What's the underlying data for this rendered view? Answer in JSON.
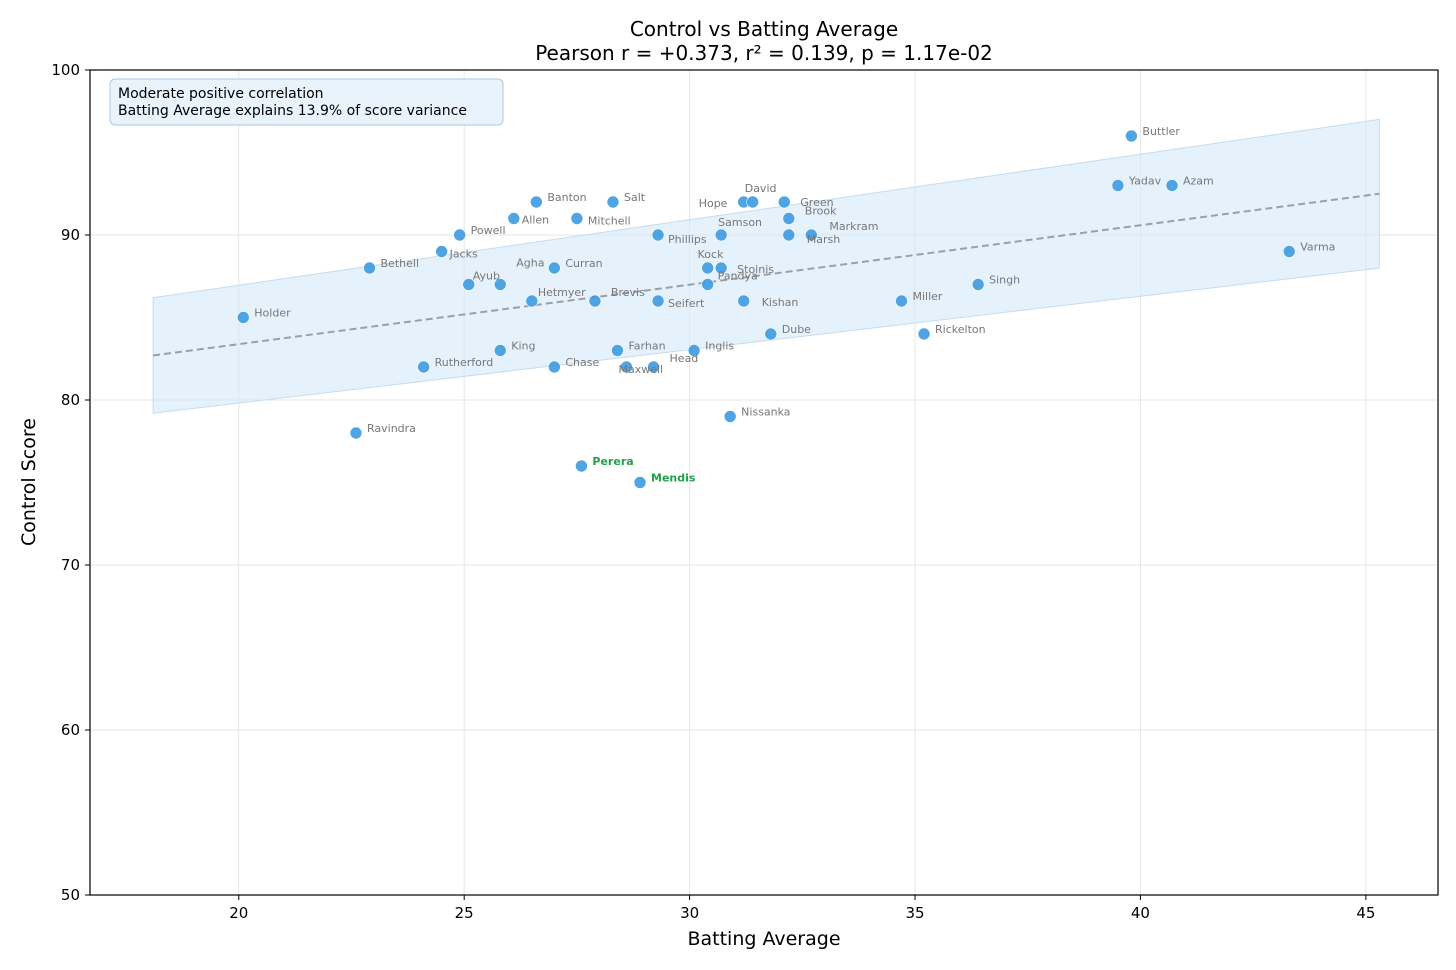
{
  "chart_data": {
    "type": "scatter",
    "title": "Control vs Batting Average",
    "subtitle": "Pearson r = +0.373,  r² = 0.139,  p = 1.17e-02",
    "xlabel": "Batting Average",
    "ylabel": "Control Score",
    "xlim": [
      16.7,
      46.6
    ],
    "ylim": [
      50,
      100
    ],
    "xticks": [
      "20",
      "25",
      "30",
      "35",
      "40",
      "45"
    ],
    "yticks": [
      "50",
      "60",
      "70",
      "80",
      "90",
      "100"
    ],
    "grid": true,
    "annotation": {
      "line1": "Moderate positive correlation",
      "line2": "Batting Average explains 13.9% of score variance"
    },
    "trend": {
      "x": [
        18.1,
        45.3
      ],
      "y": [
        82.7,
        92.5
      ],
      "style": "dashed"
    },
    "band": {
      "x": [
        18.1,
        45.3
      ],
      "upper": [
        86.2,
        97.0
      ],
      "lower": [
        79.2,
        88.0
      ]
    },
    "colors": {
      "point": "#3d9ae0",
      "highlight": "#22a04a",
      "trend": "#9aa0a6",
      "band": "#d6e9f8",
      "label": "#777777"
    },
    "points": [
      {
        "name": "Holder",
        "x": 20.1,
        "y": 85
      },
      {
        "name": "Ravindra",
        "x": 22.6,
        "y": 78
      },
      {
        "name": "Bethell",
        "x": 22.9,
        "y": 88
      },
      {
        "name": "Rutherford",
        "x": 24.1,
        "y": 82
      },
      {
        "name": "Jacks",
        "x": 24.5,
        "y": 89
      },
      {
        "name": "Powell",
        "x": 24.9,
        "y": 90
      },
      {
        "name": "Ayub",
        "x": 25.1,
        "y": 87
      },
      {
        "name": "Agha",
        "x": 25.8,
        "y": 87
      },
      {
        "name": "King",
        "x": 25.8,
        "y": 83
      },
      {
        "name": "Allen",
        "x": 26.1,
        "y": 91
      },
      {
        "name": "Hetmyer",
        "x": 26.5,
        "y": 86
      },
      {
        "name": "Banton",
        "x": 26.6,
        "y": 92
      },
      {
        "name": "Curran",
        "x": 27.0,
        "y": 88
      },
      {
        "name": "Chase",
        "x": 27.0,
        "y": 82
      },
      {
        "name": "Mitchell",
        "x": 27.5,
        "y": 91
      },
      {
        "name": "Perera",
        "x": 27.6,
        "y": 76,
        "highlight": true
      },
      {
        "name": "Brevis",
        "x": 27.9,
        "y": 86
      },
      {
        "name": "Salt",
        "x": 28.3,
        "y": 92
      },
      {
        "name": "Farhan",
        "x": 28.4,
        "y": 83
      },
      {
        "name": "Maxwell",
        "x": 28.6,
        "y": 82
      },
      {
        "name": "Mendis",
        "x": 28.9,
        "y": 75,
        "highlight": true
      },
      {
        "name": "Head",
        "x": 29.2,
        "y": 82
      },
      {
        "name": "Phillips",
        "x": 29.3,
        "y": 90
      },
      {
        "name": "Seifert",
        "x": 29.3,
        "y": 86
      },
      {
        "name": "Inglis",
        "x": 30.1,
        "y": 83
      },
      {
        "name": "Kock",
        "x": 30.4,
        "y": 88
      },
      {
        "name": "Pandya",
        "x": 30.4,
        "y": 87
      },
      {
        "name": "Samson",
        "x": 30.7,
        "y": 90
      },
      {
        "name": "Stoinis",
        "x": 30.7,
        "y": 88
      },
      {
        "name": "Nissanka",
        "x": 30.9,
        "y": 79
      },
      {
        "name": "Hope",
        "x": 31.2,
        "y": 92
      },
      {
        "name": "Kishan",
        "x": 31.2,
        "y": 86
      },
      {
        "name": "David",
        "x": 31.4,
        "y": 92
      },
      {
        "name": "Dube",
        "x": 31.8,
        "y": 84
      },
      {
        "name": "Green",
        "x": 32.1,
        "y": 92
      },
      {
        "name": "Marsh",
        "x": 32.2,
        "y": 90
      },
      {
        "name": "Brook",
        "x": 32.2,
        "y": 91
      },
      {
        "name": "Markram",
        "x": 32.7,
        "y": 90
      },
      {
        "name": "Miller",
        "x": 34.7,
        "y": 86
      },
      {
        "name": "Rickelton",
        "x": 35.2,
        "y": 84
      },
      {
        "name": "Singh",
        "x": 36.4,
        "y": 87
      },
      {
        "name": "Yadav",
        "x": 39.5,
        "y": 93
      },
      {
        "name": "Buttler",
        "x": 39.8,
        "y": 96
      },
      {
        "name": "Azam",
        "x": 40.7,
        "y": 93
      },
      {
        "name": "Varma",
        "x": 43.3,
        "y": 89
      }
    ]
  }
}
